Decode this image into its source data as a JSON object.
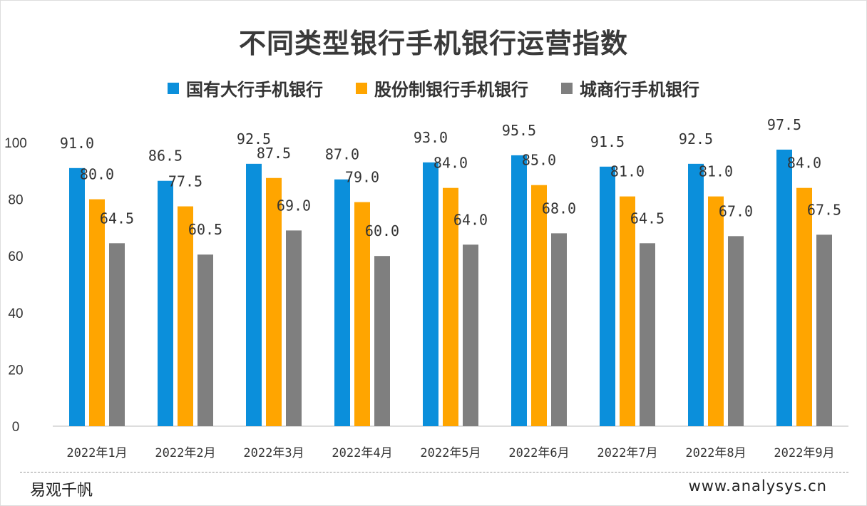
{
  "chart_data": {
    "type": "bar",
    "title": "不同类型银行手机银行运营指数",
    "categories": [
      "2022年1月",
      "2022年2月",
      "2022年3月",
      "2022年4月",
      "2022年5月",
      "2022年6月",
      "2022年7月",
      "2022年8月",
      "2022年9月"
    ],
    "series": [
      {
        "name": "国有大行手机银行",
        "color": "#0B8FDB",
        "values": [
          91.0,
          86.5,
          92.5,
          87.0,
          93.0,
          95.5,
          91.5,
          92.5,
          97.5
        ]
      },
      {
        "name": "股份制银行手机银行",
        "color": "#FFA500",
        "values": [
          80.0,
          77.5,
          87.5,
          79.0,
          84.0,
          85.0,
          81.0,
          81.0,
          84.0
        ]
      },
      {
        "name": "城商行手机银行",
        "color": "#7F7F7F",
        "values": [
          64.5,
          60.5,
          69.0,
          60.0,
          64.0,
          68.0,
          64.5,
          67.0,
          67.5
        ]
      }
    ],
    "yticks": [
      0,
      20,
      40,
      60,
      80,
      100
    ],
    "ylim": [
      0,
      100
    ],
    "xlabel": "",
    "ylabel": "",
    "legend": "top",
    "grid": false
  },
  "footer": {
    "brand": "易观千帆",
    "url": "www.analysys.cn"
  }
}
